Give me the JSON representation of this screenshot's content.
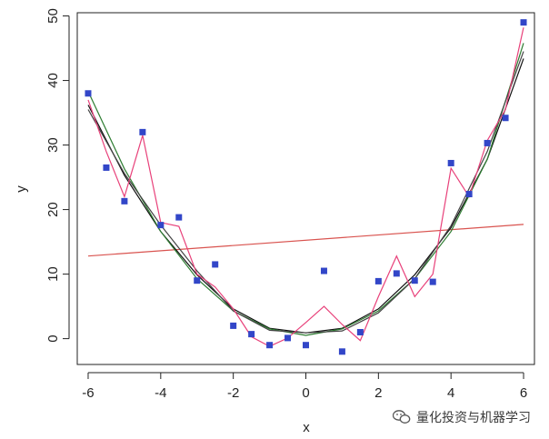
{
  "chart_data": {
    "type": "scatter",
    "xlabel": "x",
    "ylabel": "y",
    "xlim": [
      -6.3,
      6.3
    ],
    "ylim": [
      -4,
      50.5
    ],
    "xticks": [
      -6,
      -4,
      -2,
      0,
      2,
      4,
      6
    ],
    "yticks": [
      0,
      10,
      20,
      30,
      40,
      50
    ],
    "x": [
      -6,
      -5.5,
      -5,
      -4.5,
      -4,
      -3.5,
      -3,
      -2.5,
      -2,
      -1.5,
      -1,
      -0.5,
      0,
      0.5,
      1,
      1.5,
      2,
      2.5,
      3,
      3.5,
      4,
      4.5,
      5,
      5.5,
      6
    ],
    "y": [
      38,
      26.5,
      21.3,
      32,
      17.6,
      18.8,
      9,
      11.5,
      2,
      0.7,
      -1,
      0.1,
      -1,
      10.5,
      -2,
      1,
      8.9,
      10.1,
      9,
      8.8,
      27.2,
      22.4,
      30.3,
      34.2,
      49
    ],
    "point_color": "#3246c8",
    "series": [
      {
        "type": "line",
        "color": "#d9534f",
        "x": [
          -6,
          6
        ],
        "y": [
          12.8,
          17.7
        ]
      },
      {
        "type": "line",
        "color": "#111111",
        "x": [
          -6,
          -5,
          -4,
          -3,
          -2,
          -1,
          0,
          1,
          2,
          3,
          4,
          5,
          6
        ],
        "y": [
          36.2,
          25.3,
          16.6,
          9.9,
          4.6,
          1.6,
          0.9,
          1.6,
          4.6,
          9.9,
          17.2,
          27.8,
          43.4
        ]
      },
      {
        "type": "line",
        "color": "#2e7d32",
        "x": [
          -6,
          -5,
          -4,
          -3,
          -2,
          -1,
          0,
          1,
          2,
          3,
          4,
          5,
          6
        ],
        "y": [
          38.3,
          26.3,
          16.6,
          9.3,
          4.3,
          1.5,
          0.5,
          1.5,
          4.3,
          9.3,
          16.6,
          27.8,
          45.8
        ]
      },
      {
        "type": "line",
        "color": "#444444",
        "x": [
          -6,
          -5,
          -4,
          -3,
          -2,
          -1,
          0,
          1,
          2,
          3,
          4,
          5,
          6
        ],
        "y": [
          35.5,
          25.6,
          17.6,
          10.5,
          4.3,
          1.3,
          0.9,
          1.2,
          4.0,
          9.3,
          17.5,
          29.0,
          44.5
        ]
      },
      {
        "type": "line",
        "color": "#e8417a",
        "x": [
          -6,
          -5.5,
          -5,
          -4.5,
          -4,
          -3.5,
          -3,
          -2.5,
          -2,
          -1.5,
          -1,
          -0.5,
          0,
          0.5,
          1,
          1.5,
          2,
          2.5,
          3,
          3.5,
          4,
          4.5,
          5,
          5.5,
          6
        ],
        "y": [
          37,
          29,
          22,
          31.5,
          18,
          17.4,
          10,
          8,
          4.6,
          0.3,
          -1.2,
          0.1,
          2.5,
          5,
          2.2,
          -0.3,
          6.5,
          12.8,
          6.5,
          10,
          26.4,
          22,
          30.7,
          35.5,
          48.2
        ]
      }
    ]
  },
  "watermark": {
    "text": "量化投资与机器学习",
    "icon": "wechat-bubbles-icon"
  }
}
